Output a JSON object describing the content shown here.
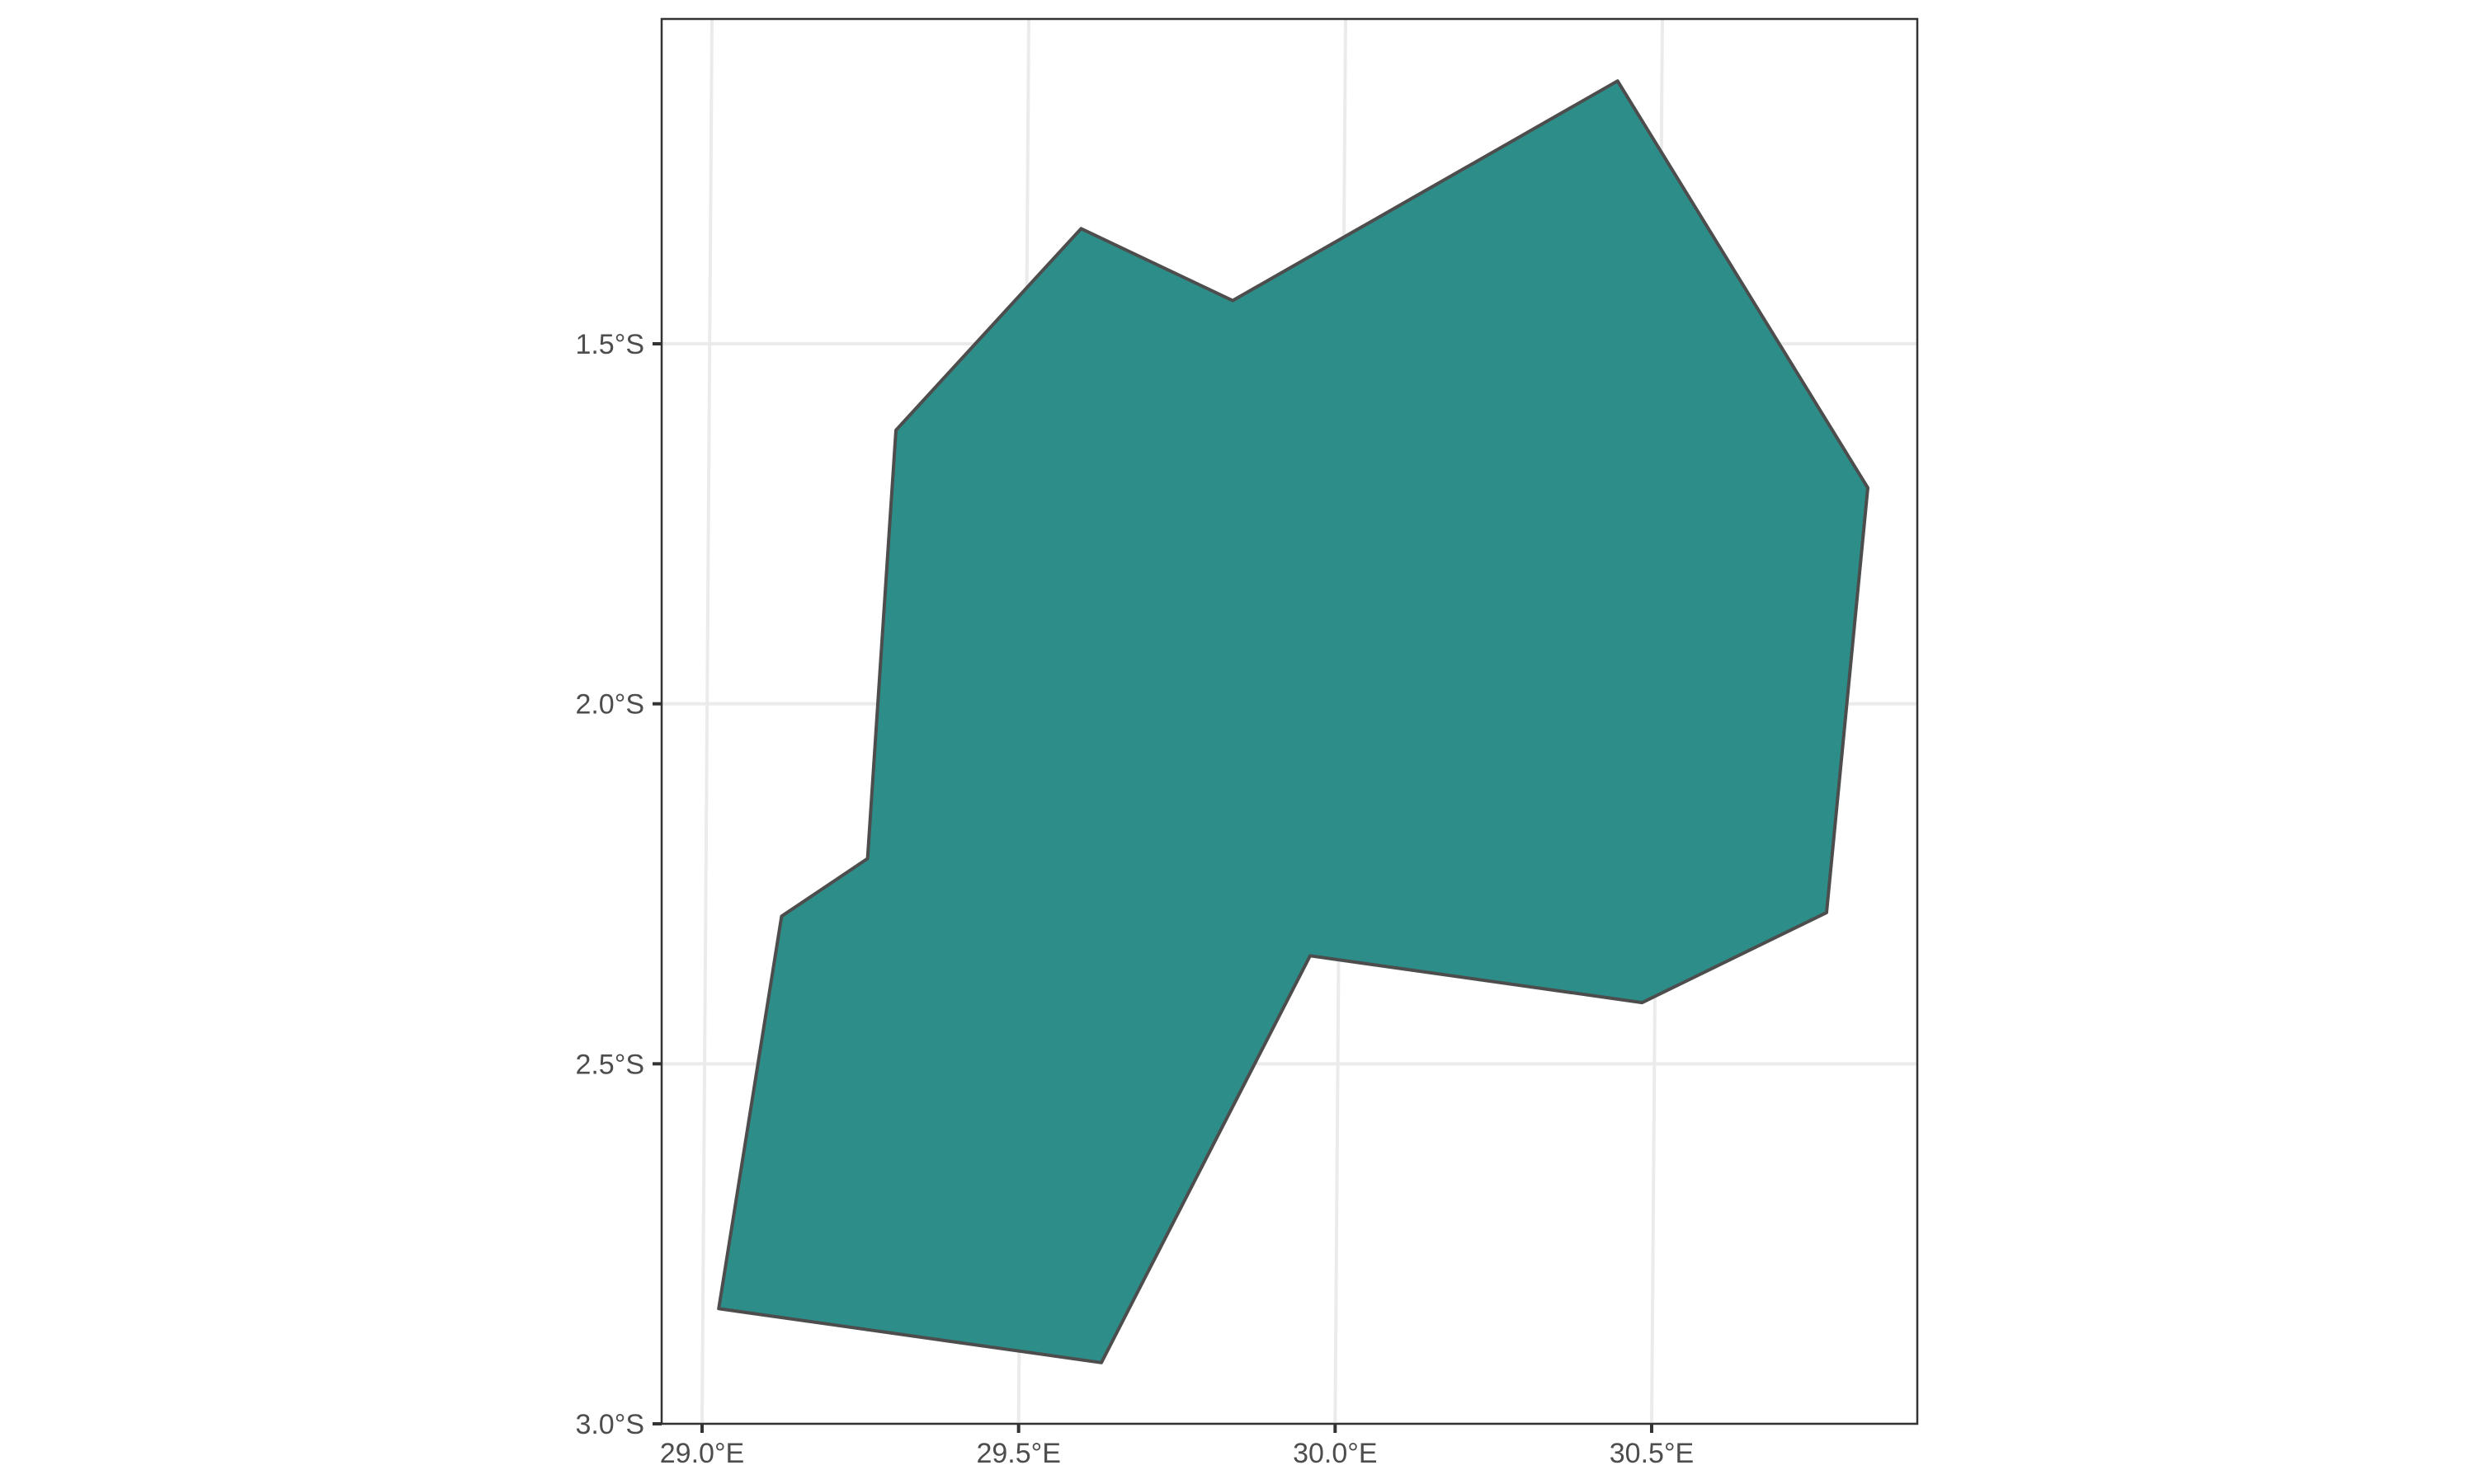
{
  "chart_data": {
    "type": "map",
    "title": "",
    "xlabel": "",
    "ylabel": "",
    "grid": true,
    "xlim": [
      28.985,
      30.915
    ],
    "ylim": [
      -3.0,
      -1.05
    ],
    "x_ticks": [
      {
        "value": 29.0,
        "label": "29.0°E"
      },
      {
        "value": 29.5,
        "label": "29.5°E"
      },
      {
        "value": 30.0,
        "label": "30.0°E"
      },
      {
        "value": 30.5,
        "label": "30.5°E"
      }
    ],
    "y_ticks": [
      {
        "value": -1.5,
        "label": "1.5°S"
      },
      {
        "value": -2.0,
        "label": "2.0°S"
      },
      {
        "value": -2.5,
        "label": "2.5°S"
      },
      {
        "value": -3.0,
        "label": "3.0°S"
      }
    ],
    "polygon": {
      "fill": "#2d8e89",
      "stroke": "#4d4d4d",
      "coordinates": [
        [
          30.43,
          -1.135
        ],
        [
          30.83,
          -1.7
        ],
        [
          30.77,
          -2.29
        ],
        [
          30.48,
          -2.415
        ],
        [
          29.955,
          -2.35
        ],
        [
          29.63,
          -2.915
        ],
        [
          29.025,
          -2.84
        ],
        [
          29.12,
          -2.295
        ],
        [
          29.255,
          -2.215
        ],
        [
          29.295,
          -1.62
        ],
        [
          29.585,
          -1.34
        ],
        [
          29.825,
          -1.44
        ],
        [
          30.43,
          -1.135
        ]
      ]
    }
  },
  "colors": {
    "background": "#ffffff",
    "grid": "#ebebeb",
    "axis": "#333333",
    "tick_text": "#4d4d4d"
  }
}
